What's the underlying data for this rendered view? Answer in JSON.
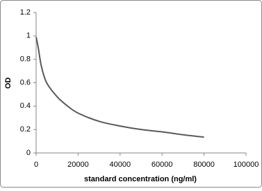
{
  "chart_data": {
    "type": "line",
    "x_label": "standard concentration (ng/ml)",
    "y_label": "OD",
    "x": [
      0,
      1000,
      2500,
      5000,
      10000,
      15000,
      20000,
      30000,
      40000,
      50000,
      60000,
      70000,
      80000
    ],
    "series": [
      {
        "color": "#595959",
        "values": [
          0.99,
          0.9,
          0.74,
          0.6,
          0.48,
          0.4,
          0.34,
          0.27,
          0.23,
          0.2,
          0.18,
          0.155,
          0.135
        ]
      }
    ],
    "xlim": [
      0,
      100000
    ],
    "xticks": [
      0,
      20000,
      40000,
      60000,
      80000,
      100000
    ],
    "ylim": [
      0,
      1.2
    ],
    "yticks": [
      0,
      0.2,
      0.4,
      0.6,
      0.8,
      1,
      1.2
    ],
    "grid": false
  }
}
